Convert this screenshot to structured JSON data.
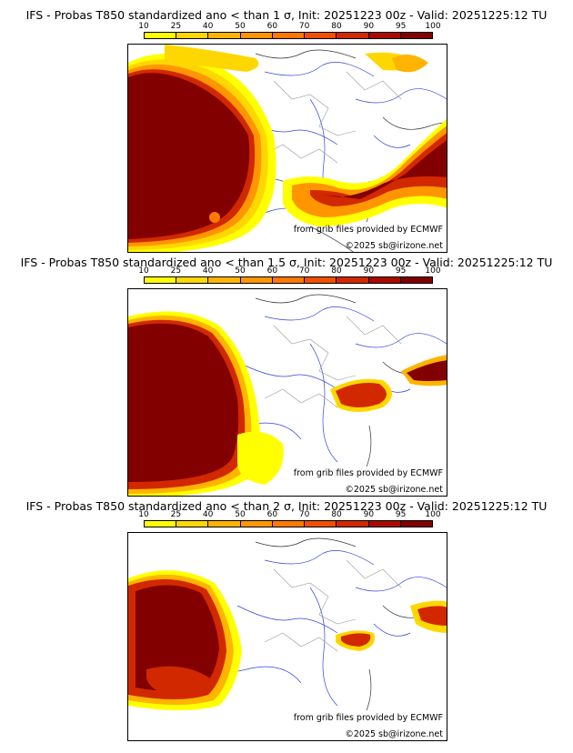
{
  "legend": {
    "ticks": [
      "10",
      "25",
      "40",
      "50",
      "60",
      "70",
      "80",
      "90",
      "95",
      "100"
    ],
    "colors": [
      "#ffff00",
      "#ffd700",
      "#ffb400",
      "#ff9600",
      "#ff7800",
      "#f05000",
      "#d22800",
      "#aa0a00",
      "#820000"
    ]
  },
  "panels": [
    {
      "title": "IFS - Probas T850  standardized ano < than 1 σ, Init: 20251223 00z - Valid: 20251225:12 TU",
      "source": "from grib files provided by ECMWF",
      "copyright": "©2025 sb@irizone.net"
    },
    {
      "title": "IFS - Probas T850  standardized ano < than 1.5 σ, Init: 20251223 00z - Valid: 20251225:12 TU",
      "source": "from grib files provided by ECMWF",
      "copyright": "©2025 sb@irizone.net"
    },
    {
      "title": "IFS - Probas T850  standardized ano < than 2 σ, Init: 20251223 00z - Valid: 20251225:12 TU",
      "source": "from grib files provided by ECMWF",
      "copyright": "©2025 sb@irizone.net"
    }
  ]
}
